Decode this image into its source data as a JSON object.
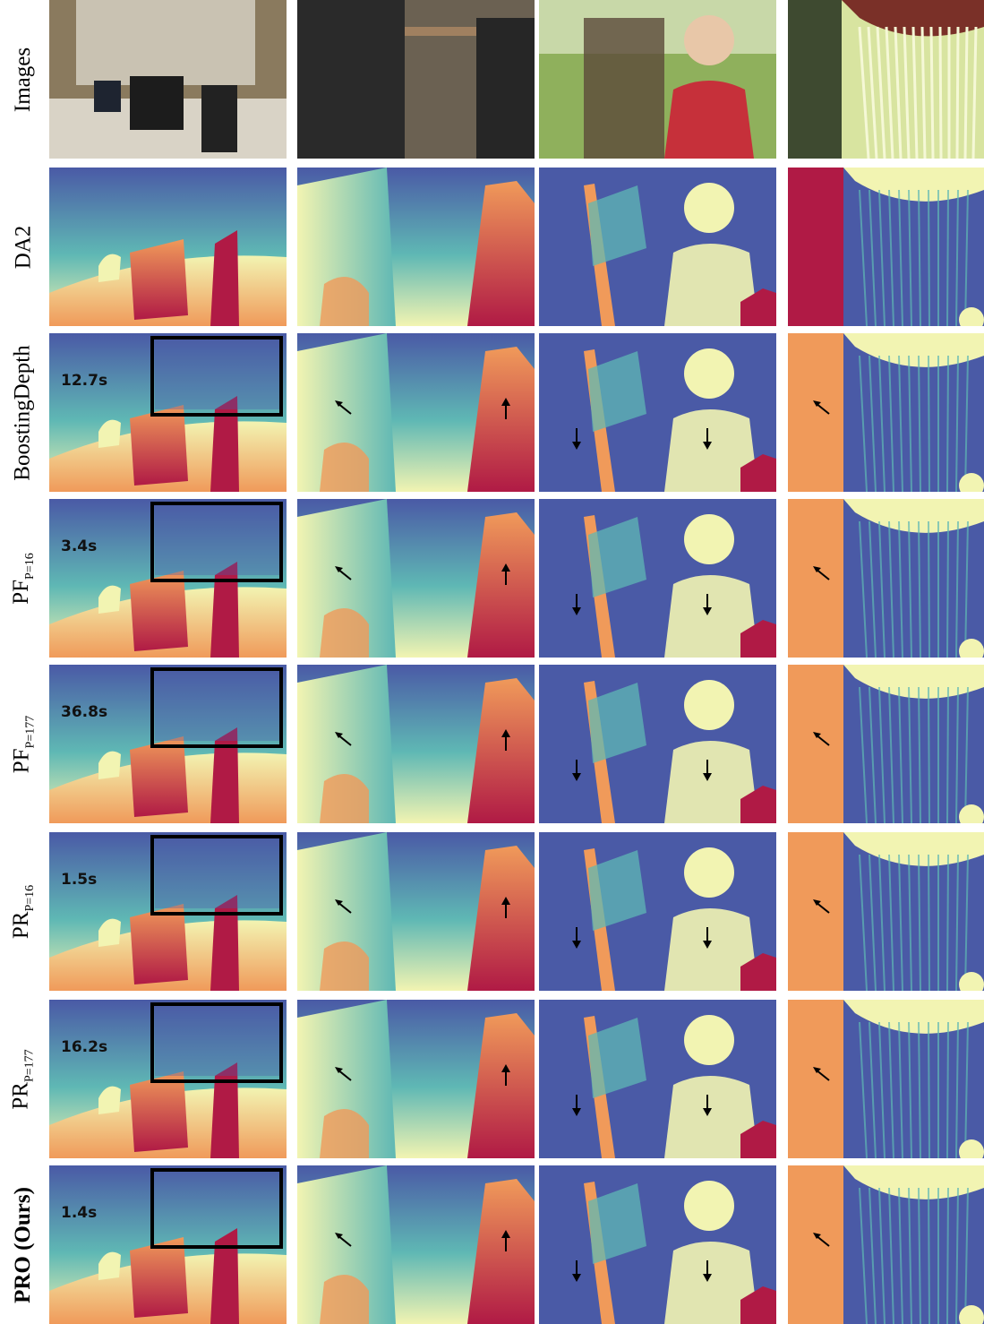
{
  "rows": [
    {
      "label": "Images",
      "sub": "",
      "time": "",
      "bold": false,
      "kind": "photo"
    },
    {
      "label": "DA2",
      "sub": "",
      "time": "",
      "bold": false,
      "kind": "depth"
    },
    {
      "label": "BoostingDepth",
      "sub": "",
      "time": "12.7s",
      "bold": false,
      "kind": "depth"
    },
    {
      "label": "PF",
      "sub": "P=16",
      "time": "3.4s",
      "bold": false,
      "kind": "depth"
    },
    {
      "label": "PF",
      "sub": "P=177",
      "time": "36.8s",
      "bold": false,
      "kind": "depth"
    },
    {
      "label": "PR",
      "sub": "P=16",
      "time": "1.5s",
      "bold": false,
      "kind": "depth"
    },
    {
      "label": "PR",
      "sub": "P=177",
      "time": "16.2s",
      "bold": false,
      "kind": "depth"
    },
    {
      "label": "PRO (Ours)",
      "sub": "",
      "time": "1.4s",
      "bold": true,
      "kind": "depth"
    }
  ],
  "colors": {
    "depth_far": "#4a5aa6",
    "depth_mid": "#5fb8b4",
    "depth_near": "#f2f4b2",
    "depth_closer": "#f09a5a",
    "depth_closest": "#b01a45",
    "roi_border": "#000000"
  },
  "icons": [
    "arrow-icon"
  ]
}
